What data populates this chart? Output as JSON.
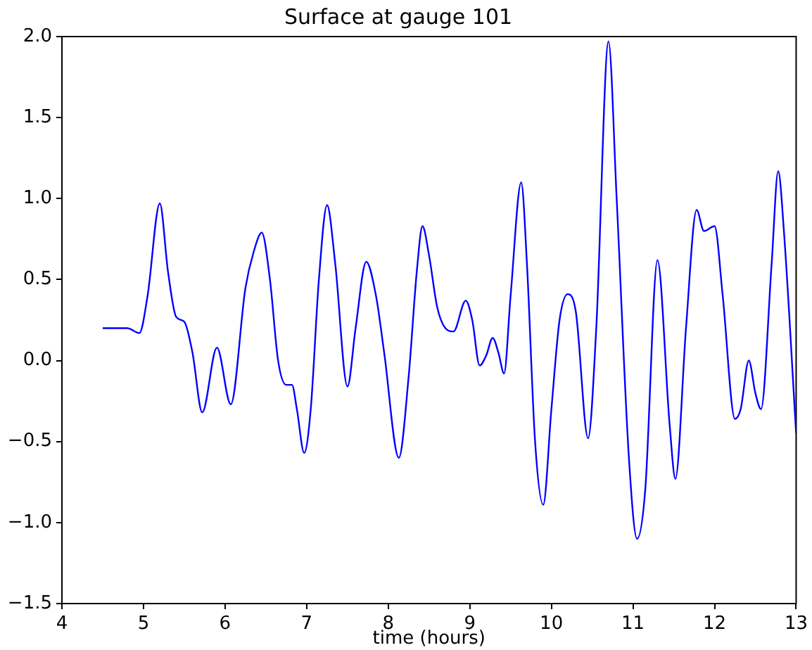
{
  "chart_data": {
    "type": "line",
    "title": "Surface at gauge 101",
    "xlabel": "time (hours)",
    "xlim": [
      4,
      13
    ],
    "xticks": [
      4,
      5,
      6,
      7,
      8,
      9,
      10,
      11,
      12,
      13
    ],
    "ylim": [
      -1.5,
      2.0
    ],
    "yticks": [
      {
        "value": -1.5,
        "label": "−1.5"
      },
      {
        "value": -1,
        "label": "−1.0"
      },
      {
        "value": -0.5,
        "label": "−0.5"
      },
      {
        "value": 0,
        "label": "0.0"
      },
      {
        "value": 0.5,
        "label": "0.5"
      },
      {
        "value": 1,
        "label": "1.0"
      },
      {
        "value": 1.5,
        "label": "1.5"
      },
      {
        "value": 2,
        "label": "2.0"
      }
    ],
    "grid": false,
    "legend": false,
    "marker": "none",
    "line_style": "solid",
    "x": [
      4.5,
      4.8,
      4.95,
      5.05,
      5.2,
      5.3,
      5.4,
      5.5,
      5.6,
      5.72,
      5.9,
      6.07,
      6.25,
      6.35,
      6.45,
      6.55,
      6.65,
      6.75,
      6.82,
      6.88,
      6.97,
      7.05,
      7.15,
      7.25,
      7.35,
      7.5,
      7.6,
      7.73,
      7.85,
      7.95,
      8.13,
      8.25,
      8.35,
      8.42,
      8.5,
      8.6,
      8.7,
      8.8,
      8.95,
      9.03,
      9.12,
      9.2,
      9.28,
      9.35,
      9.42,
      9.5,
      9.63,
      9.7,
      9.8,
      9.9,
      10.0,
      10.1,
      10.2,
      10.3,
      10.45,
      10.55,
      10.7,
      10.8,
      10.95,
      11.05,
      11.15,
      11.3,
      11.45,
      11.52,
      11.65,
      11.78,
      11.87,
      12.0,
      12.1,
      12.25,
      12.32,
      12.42,
      12.5,
      12.57,
      12.7,
      12.78,
      12.85,
      13.0
    ],
    "series": [
      {
        "color": "#0000ff",
        "values": [
          0.2,
          0.2,
          0.17,
          0.4,
          0.97,
          0.55,
          0.27,
          0.24,
          0.05,
          -0.32,
          0.08,
          -0.27,
          0.45,
          0.67,
          0.79,
          0.5,
          0.0,
          -0.15,
          -0.15,
          -0.3,
          -0.57,
          -0.3,
          0.5,
          0.96,
          0.6,
          -0.16,
          0.2,
          0.61,
          0.4,
          0.05,
          -0.6,
          -0.1,
          0.55,
          0.83,
          0.65,
          0.33,
          0.2,
          0.18,
          0.37,
          0.25,
          -0.03,
          0.03,
          0.14,
          0.05,
          -0.08,
          0.4,
          1.1,
          0.6,
          -0.5,
          -0.89,
          -0.3,
          0.25,
          0.41,
          0.3,
          -0.48,
          0.2,
          1.97,
          1.0,
          -0.6,
          -1.1,
          -0.8,
          0.62,
          -0.4,
          -0.73,
          0.2,
          0.93,
          0.8,
          0.83,
          0.4,
          -0.36,
          -0.3,
          0.0,
          -0.2,
          -0.3,
          0.6,
          1.17,
          0.8,
          -0.45
        ]
      }
    ]
  }
}
